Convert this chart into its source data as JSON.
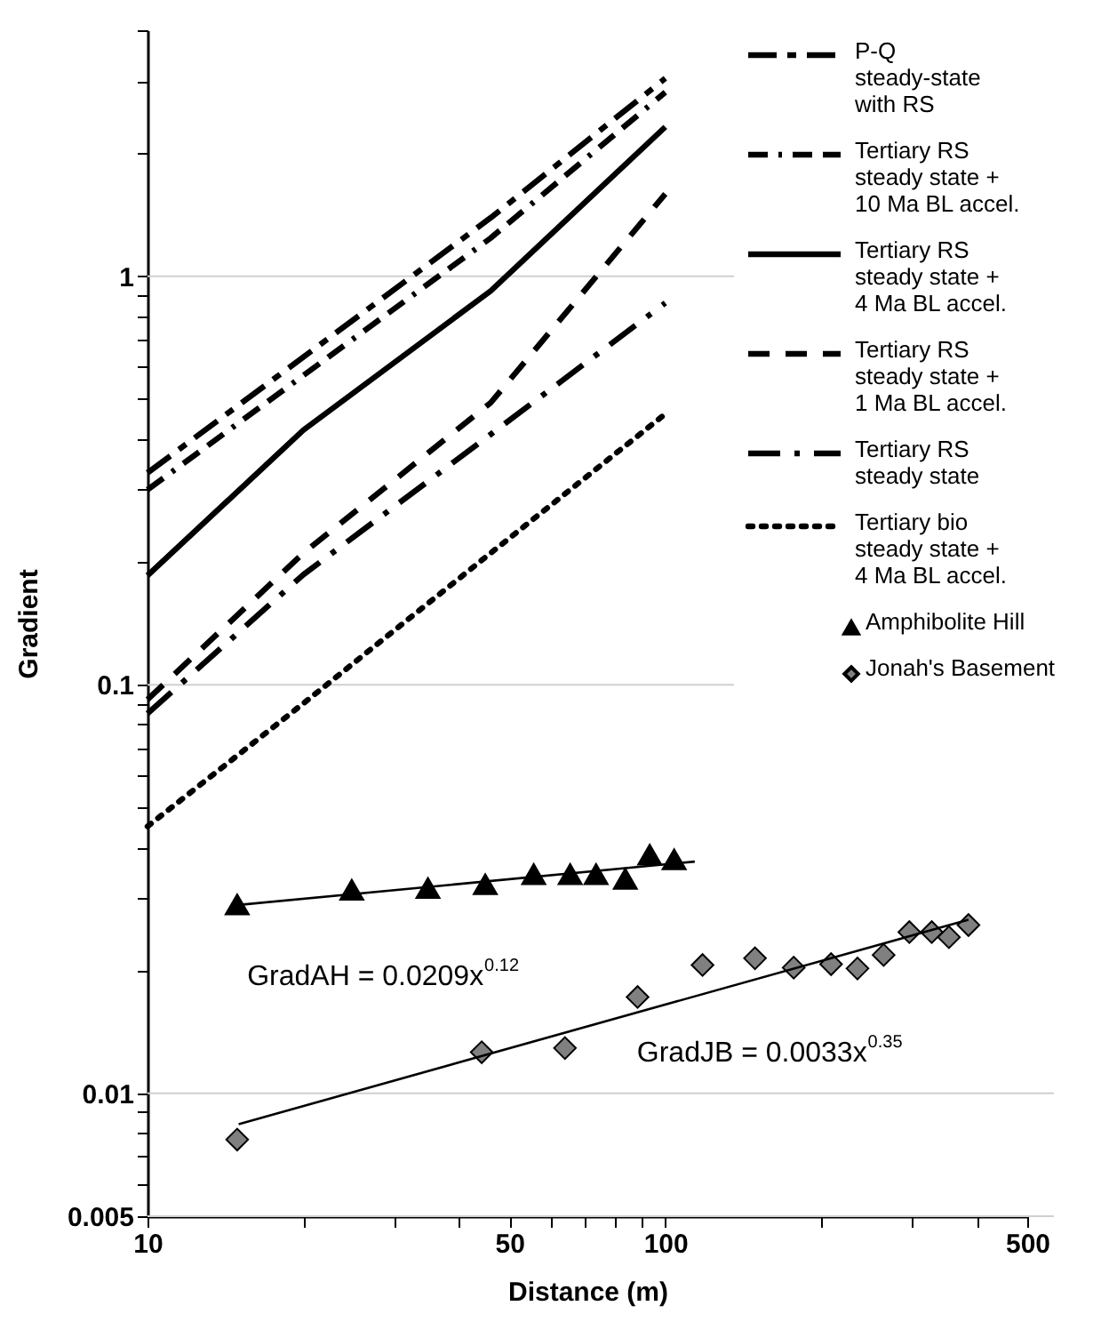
{
  "chart_data": {
    "type": "line",
    "xlabel": "Distance (m)",
    "ylabel": "Gradient",
    "log": "xy",
    "xlim": [
      10,
      500
    ],
    "ylim": [
      0.005,
      4
    ],
    "xticks": [
      10,
      {
        "value": 20,
        "label": null
      },
      {
        "value": 30,
        "label": null
      },
      {
        "value": 40,
        "label": null
      },
      50,
      {
        "value": 60,
        "label": null
      },
      {
        "value": 70,
        "label": null
      },
      {
        "value": 80,
        "label": null
      },
      {
        "value": 90,
        "label": null
      },
      100,
      {
        "value": 200,
        "label": null
      },
      {
        "value": 300,
        "label": null
      },
      {
        "value": 400,
        "label": null
      },
      500
    ],
    "yticks": [
      0.005,
      {
        "value": 0.006,
        "label": null
      },
      {
        "value": 0.007,
        "label": null
      },
      {
        "value": 0.008,
        "label": null
      },
      {
        "value": 0.009,
        "label": null
      },
      0.01,
      {
        "value": 0.02,
        "label": null
      },
      {
        "value": 0.03,
        "label": null
      },
      {
        "value": 0.04,
        "label": null
      },
      {
        "value": 0.05,
        "label": null
      },
      {
        "value": 0.06,
        "label": null
      },
      {
        "value": 0.07,
        "label": null
      },
      {
        "value": 0.08,
        "label": null
      },
      {
        "value": 0.09,
        "label": null
      },
      0.1,
      {
        "value": 0.2,
        "label": null
      },
      {
        "value": 0.3,
        "label": null
      },
      {
        "value": 0.4,
        "label": null
      },
      {
        "value": 0.5,
        "label": null
      },
      {
        "value": 0.6,
        "label": null
      },
      {
        "value": 0.7,
        "label": null
      },
      {
        "value": 0.8,
        "label": null
      },
      {
        "value": 0.9,
        "label": null
      },
      1,
      {
        "value": 2,
        "label": null
      },
      {
        "value": 3,
        "label": null
      },
      {
        "value": 4,
        "label": null
      }
    ],
    "grid": "y",
    "legend": "top right",
    "series": [
      {
        "name": "P-Q steady-state with RS",
        "line_style": "dashed",
        "marker": "none",
        "color": "#000000",
        "x": [
          10,
          46,
          100
        ],
        "values": [
          0.33,
          1.39,
          3.05
        ]
      },
      {
        "name": "Tertiary RS steady state + 10 Ma BL accel.",
        "line_style": "dashed",
        "marker": "none",
        "color": "#000000",
        "x": [
          10,
          46,
          100
        ],
        "values": [
          0.3,
          1.24,
          2.82
        ]
      },
      {
        "name": "Tertiary RS steady state +  4 Ma BL accel.",
        "line_style": "solid",
        "marker": "none",
        "color": "#000000",
        "x": [
          10,
          20,
          46,
          100
        ],
        "values": [
          0.185,
          0.42,
          0.92,
          2.32
        ]
      },
      {
        "name": "Tertiary RS steady state + 1 Ma BL accel.",
        "line_style": "dashed",
        "marker": "none",
        "color": "#000000",
        "x": [
          10,
          20,
          46,
          100
        ],
        "values": [
          0.092,
          0.21,
          0.49,
          1.59
        ]
      },
      {
        "name": "Tertiary RS steady state",
        "line_style": "dashed",
        "marker": "none",
        "color": "#000000",
        "x": [
          10,
          20,
          46,
          100
        ],
        "values": [
          0.085,
          0.186,
          0.41,
          0.86
        ]
      },
      {
        "name": "Tertiary bio steady state  + 4 Ma BL accel.",
        "line_style": "dotted",
        "marker": "none",
        "color": "#000000",
        "x": [
          10,
          20,
          46,
          100
        ],
        "values": [
          0.045,
          0.09,
          0.21,
          0.46
        ]
      },
      {
        "name": "Amphibolite Hill",
        "type": "scatter",
        "marker": "triangle",
        "color": "#000000",
        "x": [
          14.9,
          24.8,
          34.8,
          44.9,
          55.7,
          65.5,
          73.5,
          83.7,
          93.3,
          104
        ],
        "values": [
          0.029,
          0.0315,
          0.0318,
          0.0325,
          0.0344,
          0.0344,
          0.0344,
          0.0335,
          0.0384,
          0.0374
        ]
      },
      {
        "name": "Jonah's Basement",
        "type": "scatter",
        "marker": "diamond",
        "color": "#808080",
        "x": [
          14.9,
          44.2,
          64,
          88.4,
          118,
          149,
          177,
          209,
          235,
          264,
          296,
          327,
          353,
          385
        ],
        "values": [
          0.0077,
          0.0126,
          0.0129,
          0.0172,
          0.0206,
          0.0214,
          0.0203,
          0.0207,
          0.0202,
          0.0218,
          0.0248,
          0.0248,
          0.0241,
          0.0258
        ]
      },
      {
        "line_style": "solid",
        "marker": "none",
        "color": "#000000",
        "x": [
          15,
          114
        ],
        "values": [
          0.0289,
          0.0369
        ]
      },
      {
        "line_style": "solid",
        "marker": "none",
        "color": "#000000",
        "x": [
          15,
          385
        ],
        "values": [
          0.0084,
          0.0266
        ]
      }
    ],
    "annotations": [
      "GradAH = 0.0209x$^{0.12}$",
      "GradJB = 0.0033x$^{0.35}$"
    ]
  }
}
